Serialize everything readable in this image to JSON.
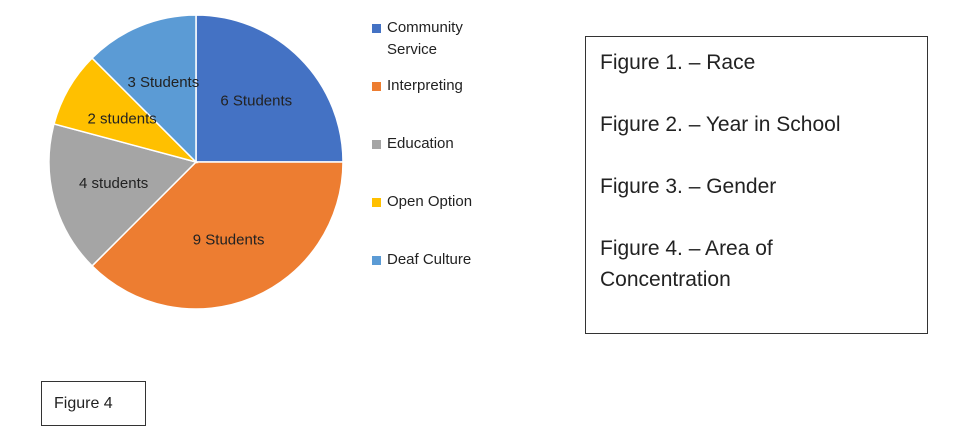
{
  "chart_data": {
    "type": "pie",
    "categories": [
      "Community Service",
      "Interpreting",
      "Education",
      "Open Option",
      "Deaf Culture"
    ],
    "values": [
      6,
      9,
      4,
      2,
      3
    ],
    "value_labels": [
      "6 Students",
      "9 Students",
      "4 students",
      "2 students",
      "3 Students"
    ],
    "colors": [
      "#4472c4",
      "#ed7d31",
      "#a5a5a5",
      "#ffc000",
      "#5b9bd5"
    ]
  },
  "figure_list": [
    "Figure 1. – Race",
    "Figure 2. – Year in School",
    "Figure 3. – Gender",
    "Figure 4. – Area of Concentration"
  ],
  "caption": "Figure 4"
}
